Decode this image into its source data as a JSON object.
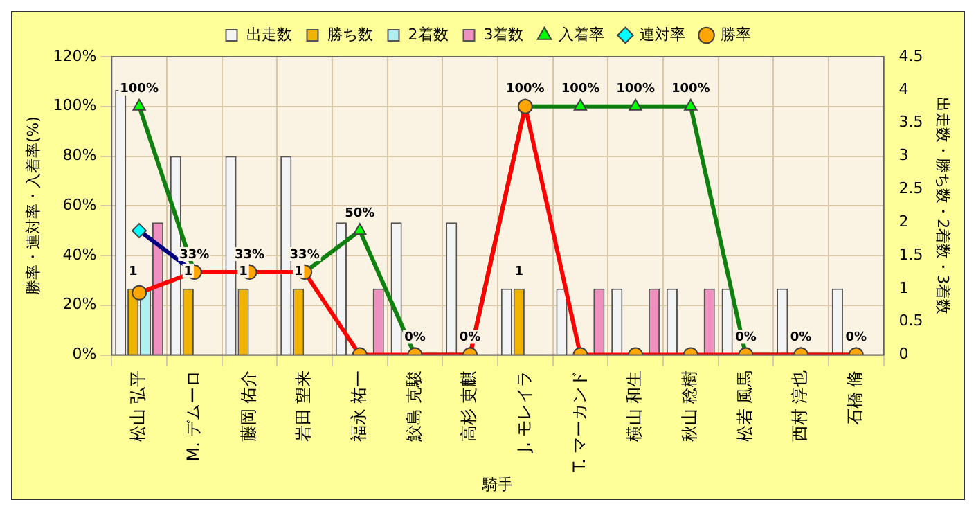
{
  "chart_data": {
    "type": "bar",
    "xlabel": "騎手",
    "ylabel": "勝率・連対率・入着率(%)",
    "y2label": "出走数・勝ち数・2着数・3着数",
    "categories": [
      "松山 弘平",
      "M. デムーロ",
      "藤岡 佑介",
      "岩田 望来",
      "福永 祐一",
      "鮫島 克駿",
      "高杉 吏麒",
      "J. モレイラ",
      "T. マーカンド",
      "横山 和生",
      "秋山 稔樹",
      "松若 風馬",
      "西村 淳也",
      "石橋 脩"
    ],
    "series": [
      {
        "name": "出走数",
        "axis": "y2",
        "color": "#f4f4f4",
        "values": [
          4,
          3,
          3,
          3,
          2,
          2,
          2,
          1,
          1,
          1,
          1,
          1,
          1,
          1
        ]
      },
      {
        "name": "勝ち数",
        "axis": "y2",
        "color": "#f0b400",
        "values": [
          1,
          1,
          1,
          1,
          0,
          0,
          0,
          1,
          0,
          0,
          0,
          0,
          0,
          0
        ],
        "value_labels": [
          "1",
          "1",
          "1",
          "1",
          null,
          null,
          null,
          "1",
          null,
          null,
          null,
          null,
          null,
          null
        ]
      },
      {
        "name": "2着数",
        "axis": "y2",
        "color": "#b0f0f0",
        "values": [
          1,
          0,
          0,
          0,
          0,
          0,
          0,
          0,
          0,
          0,
          0,
          0,
          0,
          0
        ]
      },
      {
        "name": "3着数",
        "axis": "y2",
        "color": "#f090c0",
        "values": [
          2,
          0,
          0,
          0,
          1,
          0,
          0,
          0,
          1,
          1,
          1,
          0,
          0,
          0
        ]
      },
      {
        "name": "入着率",
        "type": "line",
        "color": "#108010",
        "marker": "triangle",
        "values": [
          100,
          33.3,
          33.3,
          33.3,
          50,
          0,
          0,
          100,
          100,
          100,
          100,
          0,
          0,
          0
        ],
        "value_labels": [
          "100%",
          "33%",
          "33%",
          "33%",
          "50%",
          "0%",
          "0%",
          "100%",
          "100%",
          "100%",
          "100%",
          "0%",
          "0%",
          "0%"
        ]
      },
      {
        "name": "連対率",
        "type": "line",
        "color": "#000080",
        "marker": "diamond",
        "values": [
          50,
          33.3,
          null,
          null,
          null,
          null,
          null,
          null,
          null,
          null,
          null,
          null,
          null,
          null
        ]
      },
      {
        "name": "勝率",
        "type": "line",
        "color": "#ff0000",
        "marker": "circle",
        "values": [
          25,
          33.3,
          33.3,
          33.3,
          0,
          0,
          0,
          100,
          0,
          0,
          0,
          0,
          0,
          0
        ]
      }
    ],
    "ylim": [
      0,
      120
    ],
    "yticks": [
      {
        "value": 0,
        "label": "0%"
      },
      {
        "value": 20,
        "label": "20%"
      },
      {
        "value": 40,
        "label": "40%"
      },
      {
        "value": 60,
        "label": "60%"
      },
      {
        "value": 80,
        "label": "80%"
      },
      {
        "value": 100,
        "label": "100%"
      },
      {
        "value": 120,
        "label": "120%"
      }
    ],
    "y2lim": [
      0,
      4.5
    ],
    "y2ticks": [
      0,
      0.5,
      1,
      1.5,
      2,
      2.5,
      3,
      3.5,
      4,
      4.5
    ],
    "grid": true,
    "legend": "top"
  }
}
